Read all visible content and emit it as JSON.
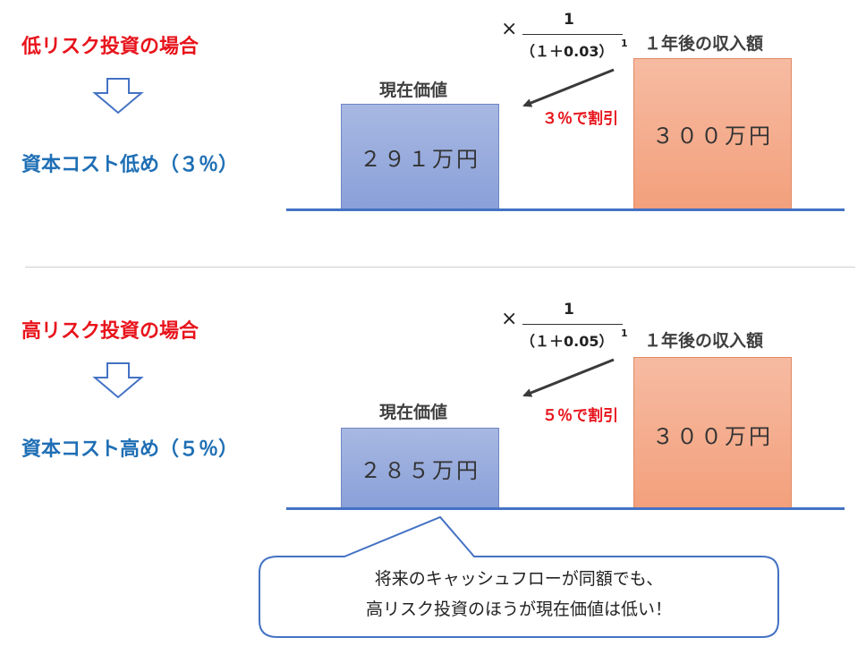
{
  "colors": {
    "red": "#e8141c",
    "blue": "#1f6fb5",
    "axis": "#4472c4"
  },
  "sections": [
    {
      "title": "低リスク投資の場合",
      "cost_label": "資本コスト低め（３％）",
      "formula": {
        "times": "×",
        "numerator": "1",
        "denominator": "（１＋0.03）",
        "exponent": "1"
      },
      "discount_label": "３％で割引",
      "present_label": "現在価値",
      "present_value": "２９１万円",
      "future_label": "１年後の収入額",
      "future_value": "３００万円"
    },
    {
      "title": "高リスク投資の場合",
      "cost_label": "資本コスト高め（５％）",
      "formula": {
        "times": "×",
        "numerator": "1",
        "denominator": "（１＋0.05）",
        "exponent": "1"
      },
      "discount_label": "５％で割引",
      "present_label": "現在価値",
      "present_value": "２８５万円",
      "future_label": "１年後の収入額",
      "future_value": "３００万円"
    }
  ],
  "callout": {
    "line1": "将来のキャッシュフローが同額でも、",
    "line2": "高リスク投資のほうが現在価値は低い！"
  }
}
